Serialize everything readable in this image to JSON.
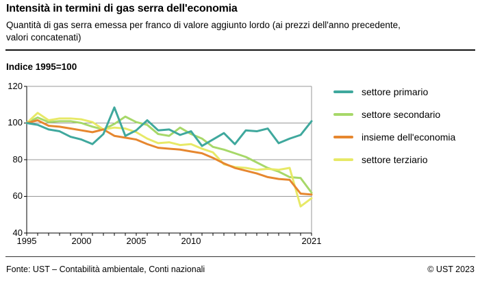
{
  "header": {
    "title": "Intensità in termini di gas serra dell'economia",
    "subtitle": "Quantità di gas serra emessa per franco di valore aggiunto lordo (ai prezzi dell'anno precedente, valori concatenati)",
    "unit_label": "Indice 1995=100"
  },
  "chart_data": {
    "type": "line",
    "title": "Intensità in termini di gas serra dell'economia",
    "ylabel": "Indice 1995=100",
    "xlabel": "",
    "ylim": [
      40,
      120
    ],
    "grid": "horizontal",
    "grid_color": "#979797",
    "axis_color": "#000000",
    "legend_position": "right",
    "y_ticks": [
      120,
      100,
      80,
      60,
      40
    ],
    "x_tick_labels": [
      "1995",
      "2000",
      "2005",
      "2010",
      "2021"
    ],
    "x_tick_years": [
      1995,
      2000,
      2005,
      2010,
      2021
    ],
    "x": [
      1995,
      1996,
      1997,
      1998,
      1999,
      2000,
      2001,
      2002,
      2003,
      2004,
      2005,
      2006,
      2007,
      2008,
      2009,
      2010,
      2011,
      2012,
      2013,
      2014,
      2015,
      2016,
      2017,
      2018,
      2019,
      2020,
      2021
    ],
    "series": [
      {
        "name": "settore primario",
        "color": "#3fa89d",
        "values": [
          100,
          99,
          96.5,
          95.5,
          92.5,
          91,
          88.5,
          94,
          108.5,
          93,
          96,
          101.5,
          96,
          96.5,
          93.5,
          95.5,
          87.5,
          91,
          94.5,
          88.5,
          96,
          95.5,
          97,
          89,
          91.5,
          93.5,
          101
        ]
      },
      {
        "name": "settore secondario",
        "color": "#a7d869",
        "values": [
          100,
          103,
          100.5,
          101,
          101,
          100,
          98,
          96.5,
          99.5,
          103.5,
          100.5,
          99,
          94,
          93,
          97.5,
          94,
          91.5,
          87,
          85.5,
          83.5,
          81.5,
          78.5,
          75.5,
          73.5,
          70.5,
          70,
          62
        ]
      },
      {
        "name": "insieme dell'economia",
        "color": "#e6872f",
        "values": [
          100,
          101.5,
          98.5,
          98,
          97,
          96,
          95,
          96.5,
          93,
          92,
          91,
          88.5,
          86.5,
          86,
          85.5,
          84.5,
          83.5,
          81,
          78,
          75.5,
          74,
          72.5,
          70.5,
          69.5,
          69,
          61.5,
          61
        ]
      },
      {
        "name": "settore terziario",
        "color": "#e7e967",
        "values": [
          100,
          105.5,
          101.5,
          102.5,
          102.5,
          102,
          100.5,
          96.5,
          97.5,
          97,
          95,
          91.5,
          89,
          89.5,
          88,
          88.5,
          86,
          84,
          77.5,
          76,
          75.5,
          74.5,
          75,
          74.5,
          75.5,
          54.5,
          59
        ]
      }
    ]
  },
  "footer": {
    "source": "Fonte: UST – Contabilità ambientale, Conti nazionali",
    "copyright": "© UST 2023"
  }
}
